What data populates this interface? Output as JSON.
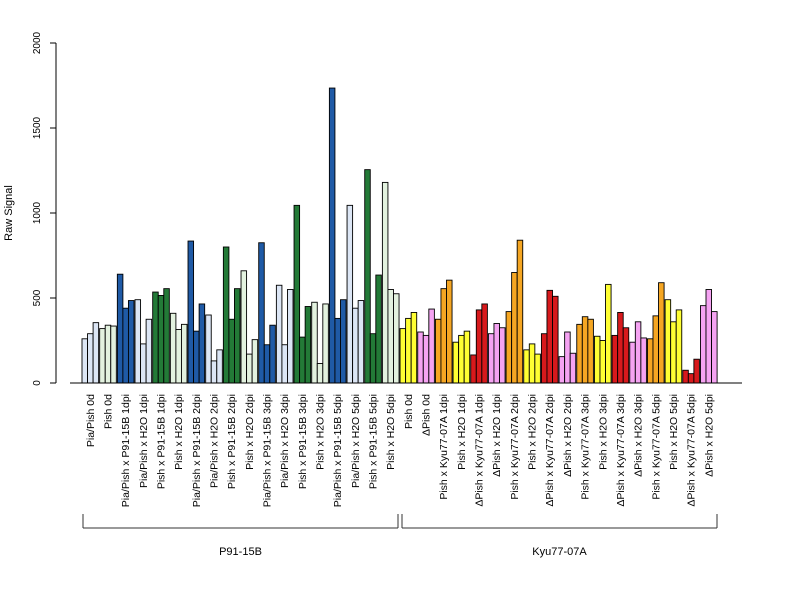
{
  "colors": {
    "light_blue": "#dce6f5",
    "dark_blue": "#1f5aa6",
    "light_green": "#e3f2df",
    "dark_green": "#237a37",
    "yellow": "#ffff33",
    "pink": "#f5a3f2",
    "red": "#d7191c",
    "orange": "#f5a623"
  },
  "chart_data": {
    "type": "bar",
    "ylabel": "Raw Signal",
    "ylim": [
      0,
      2000
    ],
    "yticks": [
      0,
      500,
      1000,
      1500,
      2000
    ],
    "grid": false,
    "groups": [
      {
        "label": "P91-15B",
        "first": 0,
        "last": 18
      },
      {
        "label": "Kyu77-07A",
        "first": 19,
        "last": 37
      }
    ],
    "categories": [
      {
        "label": "Pia/Pish 0d",
        "color": "light_blue",
        "values": [
          260,
          290,
          355
        ]
      },
      {
        "label": "Pish 0d",
        "color": "light_green",
        "values": [
          320,
          340,
          335
        ]
      },
      {
        "label": "Pia/Pish x P91-15B 1dpi",
        "color": "dark_blue",
        "values": [
          640,
          440,
          485
        ]
      },
      {
        "label": "Pia/Pish x H2O 1dpi",
        "color": "light_blue",
        "values": [
          490,
          230,
          375
        ]
      },
      {
        "label": "Pish x P91-15B 1dpi",
        "color": "dark_green",
        "values": [
          535,
          515,
          555
        ]
      },
      {
        "label": "Pish x H2O 1dpi",
        "color": "light_green",
        "values": [
          410,
          315,
          345
        ]
      },
      {
        "label": "Pia/Pish x P91-15B 2dpi",
        "color": "dark_blue",
        "values": [
          835,
          305,
          465
        ]
      },
      {
        "label": "Pia/Pish x H2O 2dpi",
        "color": "light_blue",
        "values": [
          400,
          130,
          195
        ]
      },
      {
        "label": "Pish x P91-15B 2dpi",
        "color": "dark_green",
        "values": [
          800,
          375,
          555
        ]
      },
      {
        "label": "Pish x H2O 2dpi",
        "color": "light_green",
        "values": [
          660,
          170,
          255
        ]
      },
      {
        "label": "Pia/Pish x P91-15B 3dpi",
        "color": "dark_blue",
        "values": [
          825,
          225,
          340
        ]
      },
      {
        "label": "Pia/Pish x H2O 3dpi",
        "color": "light_blue",
        "values": [
          575,
          225,
          550
        ]
      },
      {
        "label": "Pish x P91-15B 3dpi",
        "color": "dark_green",
        "values": [
          1045,
          270,
          450
        ]
      },
      {
        "label": "Pish x H2O 3dpi",
        "color": "light_green",
        "values": [
          475,
          115,
          465
        ]
      },
      {
        "label": "Pia/Pish x P91-15B 5dpi",
        "color": "dark_blue",
        "values": [
          1735,
          380,
          490
        ]
      },
      {
        "label": "Pia/Pish x H2O 5dpi",
        "color": "light_blue",
        "values": [
          1045,
          440,
          485
        ]
      },
      {
        "label": "Pish x P91-15B 5dpi",
        "color": "dark_green",
        "values": [
          1255,
          290,
          635
        ]
      },
      {
        "label": "Pish x H2O 5dpi",
        "color": "light_green",
        "values": [
          1180,
          550,
          525
        ]
      },
      {
        "label": "Pish 0d",
        "color": "yellow",
        "values": [
          320,
          380,
          415
        ]
      },
      {
        "label": "ΔPish 0d",
        "color": "pink",
        "values": [
          300,
          280,
          435
        ]
      },
      {
        "label": "Pish x Kyu77-07A 1dpi",
        "color": "orange",
        "values": [
          375,
          555,
          605
        ]
      },
      {
        "label": "Pish x H2O 1dpi",
        "color": "yellow",
        "values": [
          240,
          280,
          305
        ]
      },
      {
        "label": "ΔPish x Kyu77-07A 1dpi",
        "color": "red",
        "values": [
          165,
          430,
          465
        ]
      },
      {
        "label": "ΔPish x H2O 1dpi",
        "color": "pink",
        "values": [
          290,
          350,
          325
        ]
      },
      {
        "label": "Pish x Kyu77-07A 2dpi",
        "color": "orange",
        "values": [
          420,
          650,
          840
        ]
      },
      {
        "label": "Pish x H2O 2dpi",
        "color": "yellow",
        "values": [
          195,
          230,
          170
        ]
      },
      {
        "label": "ΔPish x Kyu77-07A 2dpi",
        "color": "red",
        "values": [
          290,
          545,
          510
        ]
      },
      {
        "label": "ΔPish x H2O 2dpi",
        "color": "pink",
        "values": [
          155,
          300,
          175
        ]
      },
      {
        "label": "Pish x Kyu77-07A 3dpi",
        "color": "orange",
        "values": [
          345,
          390,
          375
        ]
      },
      {
        "label": "Pish x H2O 3dpi",
        "color": "yellow",
        "values": [
          275,
          250,
          580
        ]
      },
      {
        "label": "ΔPish x Kyu77-07A 3dpi",
        "color": "red",
        "values": [
          280,
          415,
          325
        ]
      },
      {
        "label": "ΔPish x H2O 3dpi",
        "color": "pink",
        "values": [
          240,
          360,
          265
        ]
      },
      {
        "label": "Pish x Kyu77-07A 5dpi",
        "color": "orange",
        "values": [
          260,
          395,
          590
        ]
      },
      {
        "label": "Pish x H2O 5dpi",
        "color": "yellow",
        "values": [
          490,
          360,
          430
        ]
      },
      {
        "label": "ΔPish x Kyu77-07A 5dpi",
        "color": "red",
        "values": [
          75,
          55,
          140
        ]
      },
      {
        "label": "ΔPish x H2O 5dpi",
        "color": "pink",
        "values": [
          455,
          550,
          420
        ]
      }
    ]
  }
}
